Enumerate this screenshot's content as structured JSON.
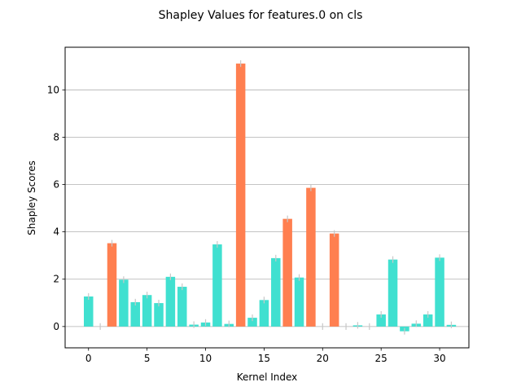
{
  "chart_data": {
    "type": "bar",
    "title": "Shapley Values for features.0 on cls",
    "xlabel": "Kernel Index",
    "ylabel": "Shapley Scores",
    "xlim": [
      -2,
      32.5
    ],
    "ylim": [
      -0.9,
      11.8
    ],
    "xticks": [
      0,
      5,
      10,
      15,
      20,
      25,
      30
    ],
    "yticks": [
      0,
      2,
      4,
      6,
      8,
      10
    ],
    "grid": "horizontal",
    "highlight_color": "#FF7F50",
    "base_color": "#40E0D0",
    "errorbar_color": "#c8c8c8",
    "x": [
      0,
      1,
      2,
      3,
      4,
      5,
      6,
      7,
      8,
      9,
      10,
      11,
      12,
      13,
      14,
      15,
      16,
      17,
      18,
      19,
      20,
      21,
      22,
      23,
      24,
      25,
      26,
      27,
      28,
      29,
      30,
      31
    ],
    "values": [
      1.27,
      0.0,
      3.52,
      1.98,
      1.03,
      1.33,
      0.99,
      2.1,
      1.68,
      0.08,
      0.17,
      3.47,
      0.11,
      11.11,
      0.37,
      1.12,
      2.89,
      4.55,
      2.07,
      5.86,
      0.0,
      3.93,
      0.0,
      0.05,
      0.0,
      0.51,
      2.83,
      -0.2,
      0.12,
      0.51,
      2.91,
      0.07
    ],
    "errors": [
      0.14,
      0.14,
      0.14,
      0.14,
      0.14,
      0.14,
      0.14,
      0.14,
      0.14,
      0.14,
      0.14,
      0.14,
      0.14,
      0.14,
      0.14,
      0.14,
      0.14,
      0.14,
      0.14,
      0.14,
      0.14,
      0.14,
      0.14,
      0.14,
      0.14,
      0.14,
      0.14,
      0.14,
      0.14,
      0.14,
      0.14,
      0.14
    ],
    "highlighted": [
      2,
      13,
      17,
      19,
      21
    ]
  }
}
